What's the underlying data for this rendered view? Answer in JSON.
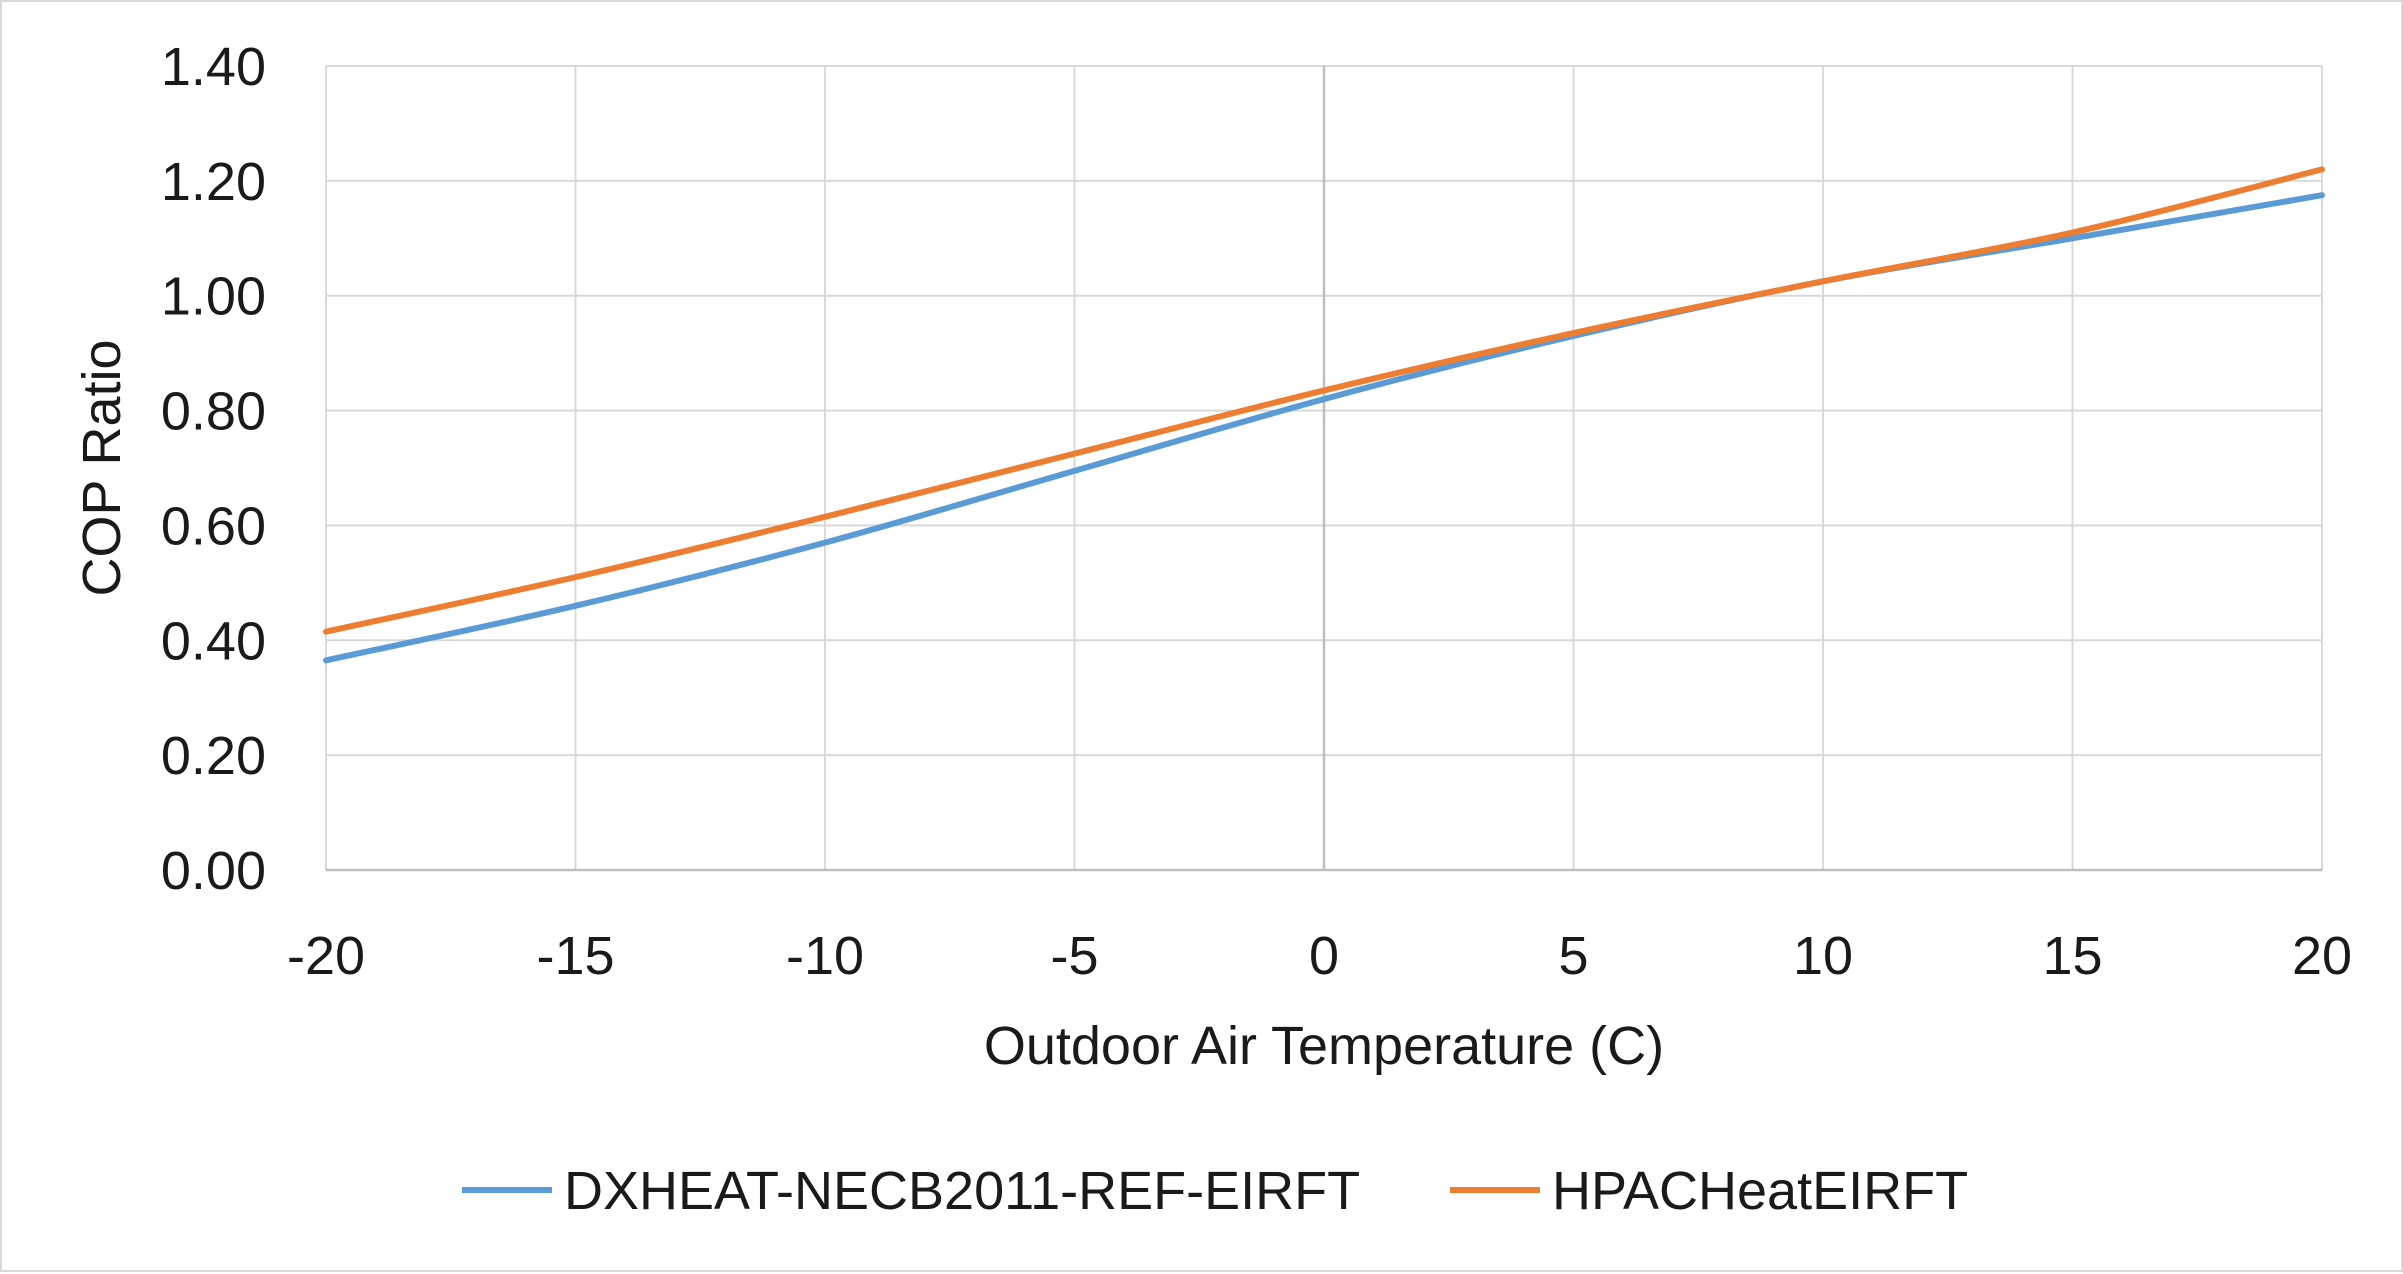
{
  "chart_data": {
    "type": "line",
    "xlabel": "Outdoor Air Temperature (C)",
    "ylabel": "COP Ratio",
    "xlim": [
      -20,
      20
    ],
    "ylim": [
      0,
      1.4
    ],
    "x_ticks": [
      -20,
      -15,
      -10,
      -5,
      0,
      5,
      10,
      15,
      20
    ],
    "x_tick_labels": [
      "-20",
      "-15",
      "-10",
      "-5",
      "0",
      "5",
      "10",
      "15",
      "20"
    ],
    "y_ticks": [
      0,
      0.2,
      0.4,
      0.6,
      0.8,
      1.0,
      1.2,
      1.4
    ],
    "y_tick_labels": [
      "0.00",
      "0.20",
      "0.40",
      "0.60",
      "0.80",
      "1.00",
      "1.20",
      "1.40"
    ],
    "grid": true,
    "legend_position": "bottom",
    "x": [
      -20,
      -15,
      -10,
      -5,
      0,
      5,
      10,
      15,
      20
    ],
    "series": [
      {
        "name": "DXHEAT-NECB2011-REF-EIRFT",
        "color": "#5b9bd5",
        "values": [
          0.365,
          0.46,
          0.57,
          0.695,
          0.82,
          0.93,
          1.025,
          1.1,
          1.175
        ]
      },
      {
        "name": "HPACHeatEIRFT",
        "color": "#ed7d31",
        "values": [
          0.415,
          0.51,
          0.615,
          0.725,
          0.835,
          0.935,
          1.025,
          1.11,
          1.22
        ]
      }
    ]
  }
}
